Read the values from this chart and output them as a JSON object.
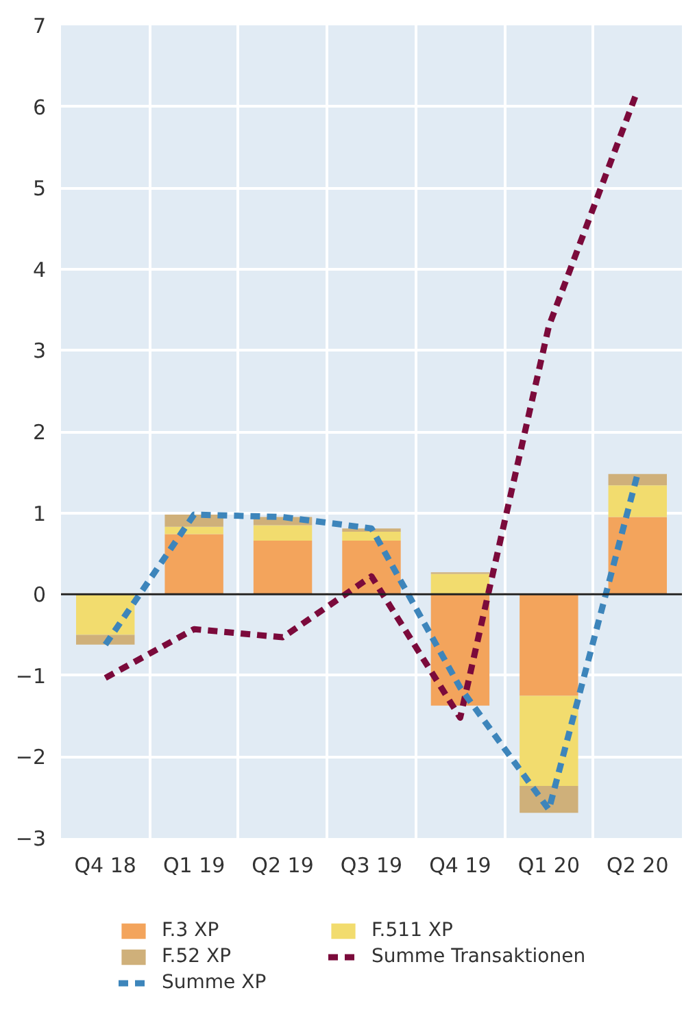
{
  "chart_data": {
    "type": "bar",
    "stacked": true,
    "categories": [
      "Q4 18",
      "Q1 19",
      "Q2 19",
      "Q3 19",
      "Q4 19",
      "Q1 20",
      "Q2 20"
    ],
    "series": [
      {
        "name": "F.3 XP",
        "color": "#f3a45c",
        "values": [
          0,
          0.74,
          0.66,
          0.66,
          -1.37,
          -1.25,
          0.95
        ]
      },
      {
        "name": "F.511 XP",
        "color": "#f2dc6e",
        "values": [
          -0.5,
          0.09,
          0.19,
          0.11,
          0.25,
          -1.11,
          0.39
        ]
      },
      {
        "name": "F.52 XP",
        "color": "#cfb07a",
        "values": [
          -0.12,
          0.15,
          0.1,
          0.04,
          0.02,
          -0.33,
          0.14
        ]
      },
      {
        "name": "Summe Transaktionen",
        "type": "line",
        "color": "#7b0a3b",
        "line_style": "dashed",
        "values": [
          -1.03,
          -0.43,
          -0.53,
          0.22,
          -1.52,
          3.3,
          6.2
        ]
      },
      {
        "name": "Summe XP",
        "type": "line",
        "color": "#3d85bb",
        "line_style": "dashed",
        "values": [
          -0.62,
          0.98,
          0.95,
          0.81,
          -1.15,
          -2.65,
          1.48
        ]
      }
    ],
    "ylim": [
      -3,
      7
    ],
    "yticks": [
      -3,
      -2,
      -1,
      0,
      1,
      2,
      3,
      4,
      5,
      6,
      7
    ],
    "ref_lines": [
      {
        "axis": "y",
        "value": 0,
        "color": "#222222"
      }
    ],
    "grid": true,
    "legend": "bottom"
  }
}
